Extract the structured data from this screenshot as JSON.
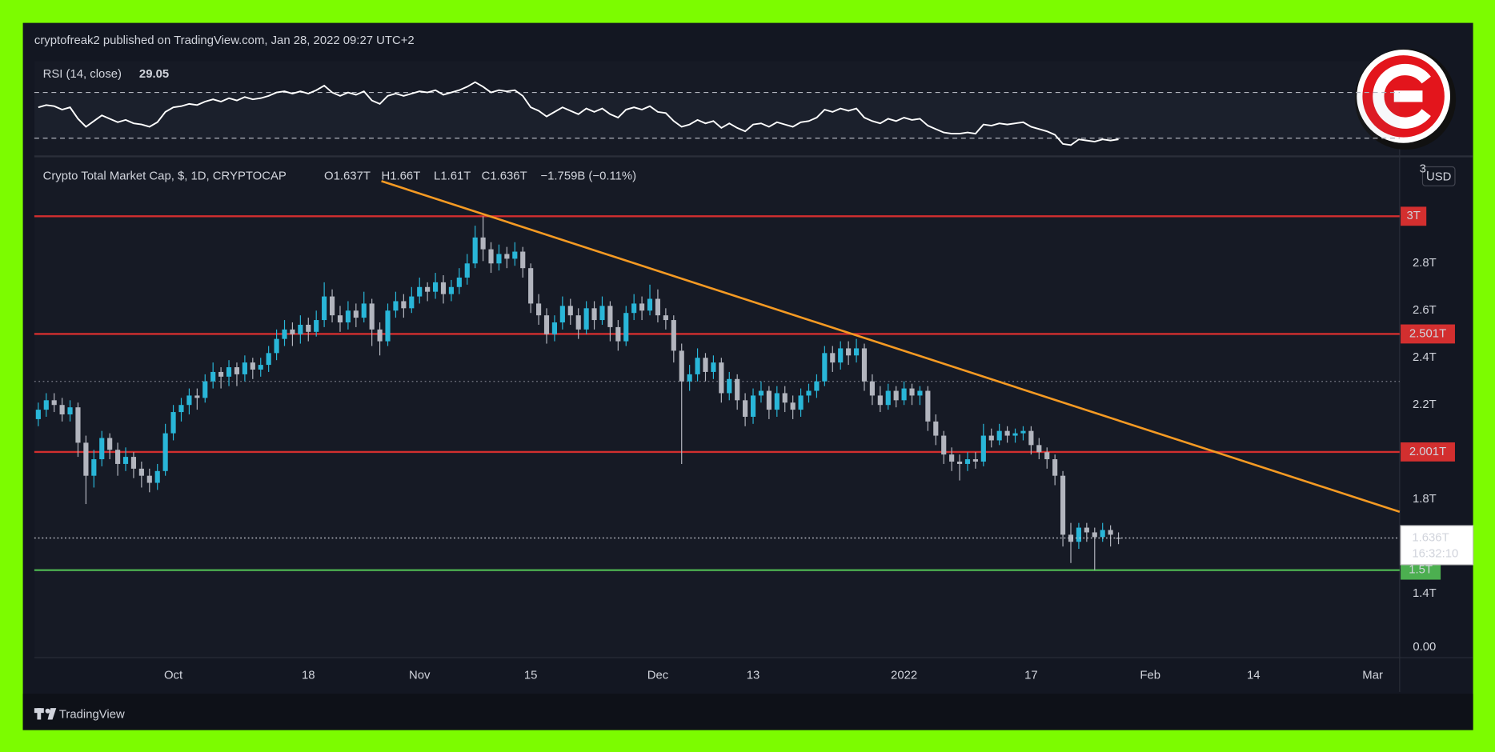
{
  "header": {
    "published": "cryptofreak2 published on TradingView.com, Jan 28, 2022 09:27 UTC+2",
    "footer": "TradingView"
  },
  "chart_data": {
    "type": "candlestick",
    "title": "Crypto Total Market Cap, $, 1D, CRYPTOCAP",
    "ohlc_labels": [
      "O1.637T",
      "H1.66T",
      "L1.61T",
      "C1.636T"
    ],
    "change": "−1.759B (−0.11%)",
    "currency": "USD",
    "up_color": "#29b6d8",
    "down_color": "#b2b5be",
    "xlim": [
      -0.5,
      171.4
    ],
    "xticks": [
      {
        "value": 17,
        "label": "Oct"
      },
      {
        "value": 34,
        "label": "18"
      },
      {
        "value": 48,
        "label": "Nov"
      },
      {
        "value": 62,
        "label": "15"
      },
      {
        "value": 78,
        "label": "Dec"
      },
      {
        "value": 90,
        "label": "13"
      },
      {
        "value": 109,
        "label": "2022"
      },
      {
        "value": 125,
        "label": "17"
      },
      {
        "value": 140,
        "label": "Feb"
      },
      {
        "value": 153,
        "label": "14"
      },
      {
        "value": 168,
        "label": "Mar"
      }
    ],
    "ylim": [
      1.129,
      3.25
    ],
    "yticks": [
      {
        "value": 3.2,
        "label": "3."
      },
      {
        "value": 2.8,
        "label": "2.8T"
      },
      {
        "value": 2.6,
        "label": "2.6T"
      },
      {
        "value": 2.4,
        "label": "2.4T"
      },
      {
        "value": 2.2,
        "label": "2.2T"
      },
      {
        "value": 1.8,
        "label": "1.8T"
      },
      {
        "value": 1.4,
        "label": "1.4T"
      }
    ],
    "bottom_axis_label": "0.00",
    "grid": false,
    "levels": [
      {
        "value": 3,
        "label": "3T",
        "color": "#d32f2f"
      },
      {
        "value": 2.501,
        "label": "2.501T",
        "color": "#d32f2f"
      },
      {
        "value": 2.001,
        "label": "2.001T",
        "color": "#d32f2f"
      },
      {
        "value": 1.5,
        "label": "1.5T",
        "color": "#4caf50"
      }
    ],
    "dotted_levels": [
      2.3
    ],
    "last_price": {
      "value": 1.636,
      "label": "1.636T",
      "countdown": "16:32:10"
    },
    "trendline": {
      "x": [
        43.2,
        171.4
      ],
      "y": [
        3.149,
        1.747
      ],
      "color": "#f59a23"
    },
    "x": [
      0,
      1,
      2,
      3,
      4,
      5,
      6,
      7,
      8,
      9,
      10,
      11,
      12,
      13,
      14,
      15,
      16,
      17,
      18,
      19,
      20,
      21,
      22,
      23,
      24,
      25,
      26,
      27,
      28,
      29,
      30,
      31,
      32,
      33,
      34,
      35,
      36,
      37,
      38,
      39,
      40,
      41,
      42,
      43,
      44,
      45,
      46,
      47,
      48,
      49,
      50,
      51,
      52,
      53,
      54,
      55,
      56,
      57,
      58,
      59,
      60,
      61,
      62,
      63,
      64,
      65,
      66,
      67,
      68,
      69,
      70,
      71,
      72,
      73,
      74,
      75,
      76,
      77,
      78,
      79,
      80,
      81,
      82,
      83,
      84,
      85,
      86,
      87,
      88,
      89,
      90,
      91,
      92,
      93,
      94,
      95,
      96,
      97,
      98,
      99,
      100,
      101,
      102,
      103,
      104,
      105,
      106,
      107,
      108,
      109,
      110,
      111,
      112,
      113,
      114,
      115,
      116,
      117,
      118,
      119,
      120,
      121,
      122,
      123,
      124,
      125,
      126,
      127,
      128,
      129,
      130,
      131,
      132,
      133,
      134,
      135,
      136
    ],
    "ohlc": [
      [
        2.14,
        2.21,
        2.11,
        2.18
      ],
      [
        2.18,
        2.25,
        2.15,
        2.22
      ],
      [
        2.22,
        2.25,
        2.17,
        2.2
      ],
      [
        2.2,
        2.23,
        2.13,
        2.16
      ],
      [
        2.16,
        2.22,
        2.13,
        2.19
      ],
      [
        2.19,
        2.21,
        1.98,
        2.04
      ],
      [
        2.04,
        2.07,
        1.78,
        1.9
      ],
      [
        1.9,
        2.01,
        1.85,
        1.97
      ],
      [
        1.97,
        2.09,
        1.94,
        2.06
      ],
      [
        2.06,
        2.08,
        1.97,
        2.01
      ],
      [
        2.01,
        2.04,
        1.9,
        1.95
      ],
      [
        1.95,
        2.02,
        1.92,
        1.98
      ],
      [
        1.98,
        2.0,
        1.89,
        1.93
      ],
      [
        1.93,
        1.96,
        1.85,
        1.9
      ],
      [
        1.9,
        1.93,
        1.83,
        1.87
      ],
      [
        1.87,
        1.95,
        1.84,
        1.92
      ],
      [
        1.92,
        2.12,
        1.9,
        2.08
      ],
      [
        2.08,
        2.2,
        2.05,
        2.17
      ],
      [
        2.17,
        2.23,
        2.13,
        2.2
      ],
      [
        2.2,
        2.27,
        2.16,
        2.24
      ],
      [
        2.24,
        2.27,
        2.18,
        2.23
      ],
      [
        2.23,
        2.33,
        2.21,
        2.3
      ],
      [
        2.3,
        2.38,
        2.27,
        2.34
      ],
      [
        2.34,
        2.36,
        2.27,
        2.32
      ],
      [
        2.32,
        2.39,
        2.28,
        2.36
      ],
      [
        2.36,
        2.38,
        2.28,
        2.33
      ],
      [
        2.33,
        2.41,
        2.3,
        2.38
      ],
      [
        2.38,
        2.4,
        2.31,
        2.35
      ],
      [
        2.35,
        2.4,
        2.32,
        2.37
      ],
      [
        2.37,
        2.45,
        2.34,
        2.42
      ],
      [
        2.42,
        2.52,
        2.39,
        2.48
      ],
      [
        2.48,
        2.56,
        2.45,
        2.52
      ],
      [
        2.52,
        2.55,
        2.45,
        2.5
      ],
      [
        2.5,
        2.58,
        2.46,
        2.54
      ],
      [
        2.54,
        2.57,
        2.47,
        2.51
      ],
      [
        2.51,
        2.6,
        2.49,
        2.56
      ],
      [
        2.56,
        2.72,
        2.53,
        2.66
      ],
      [
        2.66,
        2.69,
        2.55,
        2.58
      ],
      [
        2.58,
        2.62,
        2.51,
        2.55
      ],
      [
        2.55,
        2.64,
        2.52,
        2.6
      ],
      [
        2.6,
        2.63,
        2.53,
        2.57
      ],
      [
        2.57,
        2.68,
        2.55,
        2.63
      ],
      [
        2.63,
        2.65,
        2.45,
        2.52
      ],
      [
        2.52,
        2.55,
        2.41,
        2.47
      ],
      [
        2.47,
        2.63,
        2.45,
        2.6
      ],
      [
        2.6,
        2.68,
        2.57,
        2.64
      ],
      [
        2.64,
        2.67,
        2.57,
        2.61
      ],
      [
        2.61,
        2.7,
        2.59,
        2.66
      ],
      [
        2.66,
        2.74,
        2.63,
        2.7
      ],
      [
        2.7,
        2.72,
        2.64,
        2.68
      ],
      [
        2.68,
        2.76,
        2.65,
        2.72
      ],
      [
        2.72,
        2.75,
        2.63,
        2.67
      ],
      [
        2.67,
        2.73,
        2.64,
        2.7
      ],
      [
        2.7,
        2.78,
        2.67,
        2.74
      ],
      [
        2.74,
        2.84,
        2.71,
        2.8
      ],
      [
        2.8,
        2.96,
        2.78,
        2.91
      ],
      [
        2.91,
        3.0,
        2.81,
        2.86
      ],
      [
        2.86,
        2.89,
        2.76,
        2.8
      ],
      [
        2.8,
        2.88,
        2.77,
        2.84
      ],
      [
        2.84,
        2.87,
        2.78,
        2.82
      ],
      [
        2.82,
        2.89,
        2.79,
        2.85
      ],
      [
        2.85,
        2.87,
        2.74,
        2.78
      ],
      [
        2.78,
        2.8,
        2.59,
        2.63
      ],
      [
        2.63,
        2.67,
        2.54,
        2.58
      ],
      [
        2.58,
        2.61,
        2.46,
        2.5
      ],
      [
        2.5,
        2.58,
        2.47,
        2.55
      ],
      [
        2.55,
        2.66,
        2.52,
        2.62
      ],
      [
        2.62,
        2.65,
        2.54,
        2.58
      ],
      [
        2.58,
        2.61,
        2.48,
        2.52
      ],
      [
        2.52,
        2.64,
        2.5,
        2.61
      ],
      [
        2.61,
        2.64,
        2.52,
        2.56
      ],
      [
        2.56,
        2.66,
        2.54,
        2.62
      ],
      [
        2.62,
        2.64,
        2.47,
        2.53
      ],
      [
        2.53,
        2.56,
        2.43,
        2.47
      ],
      [
        2.47,
        2.62,
        2.45,
        2.59
      ],
      [
        2.59,
        2.67,
        2.56,
        2.63
      ],
      [
        2.63,
        2.66,
        2.56,
        2.6
      ],
      [
        2.6,
        2.71,
        2.58,
        2.65
      ],
      [
        2.65,
        2.69,
        2.55,
        2.58
      ],
      [
        2.58,
        2.61,
        2.52,
        2.56
      ],
      [
        2.56,
        2.58,
        2.38,
        2.43
      ],
      [
        2.43,
        2.46,
        1.95,
        2.3
      ],
      [
        2.3,
        2.37,
        2.26,
        2.33
      ],
      [
        2.33,
        2.44,
        2.3,
        2.4
      ],
      [
        2.4,
        2.42,
        2.3,
        2.34
      ],
      [
        2.34,
        2.41,
        2.31,
        2.38
      ],
      [
        2.38,
        2.4,
        2.21,
        2.25
      ],
      [
        2.25,
        2.34,
        2.22,
        2.31
      ],
      [
        2.31,
        2.33,
        2.18,
        2.22
      ],
      [
        2.22,
        2.25,
        2.11,
        2.15
      ],
      [
        2.15,
        2.27,
        2.12,
        2.24
      ],
      [
        2.24,
        2.3,
        2.21,
        2.26
      ],
      [
        2.26,
        2.28,
        2.14,
        2.18
      ],
      [
        2.18,
        2.28,
        2.15,
        2.25
      ],
      [
        2.25,
        2.28,
        2.17,
        2.21
      ],
      [
        2.21,
        2.24,
        2.14,
        2.18
      ],
      [
        2.18,
        2.27,
        2.15,
        2.24
      ],
      [
        2.24,
        2.29,
        2.21,
        2.26
      ],
      [
        2.26,
        2.33,
        2.23,
        2.3
      ],
      [
        2.3,
        2.45,
        2.28,
        2.42
      ],
      [
        2.42,
        2.45,
        2.34,
        2.38
      ],
      [
        2.38,
        2.47,
        2.35,
        2.44
      ],
      [
        2.44,
        2.47,
        2.37,
        2.41
      ],
      [
        2.41,
        2.48,
        2.38,
        2.44
      ],
      [
        2.44,
        2.46,
        2.26,
        2.3
      ],
      [
        2.3,
        2.33,
        2.2,
        2.24
      ],
      [
        2.24,
        2.28,
        2.17,
        2.2
      ],
      [
        2.2,
        2.29,
        2.18,
        2.26
      ],
      [
        2.26,
        2.28,
        2.19,
        2.22
      ],
      [
        2.22,
        2.3,
        2.2,
        2.27
      ],
      [
        2.27,
        2.29,
        2.2,
        2.24
      ],
      [
        2.24,
        2.28,
        2.2,
        2.26
      ],
      [
        2.26,
        2.28,
        2.09,
        2.13
      ],
      [
        2.13,
        2.16,
        2.03,
        2.07
      ],
      [
        2.07,
        2.09,
        1.95,
        1.99
      ],
      [
        1.99,
        2.02,
        1.92,
        1.96
      ],
      [
        1.96,
        1.99,
        1.88,
        1.95
      ],
      [
        1.95,
        2.0,
        1.92,
        1.97
      ],
      [
        1.97,
        2.0,
        1.93,
        1.96
      ],
      [
        1.96,
        2.12,
        1.94,
        2.07
      ],
      [
        2.07,
        2.1,
        2.02,
        2.05
      ],
      [
        2.05,
        2.12,
        2.03,
        2.09
      ],
      [
        2.09,
        2.11,
        2.04,
        2.07
      ],
      [
        2.07,
        2.1,
        2.04,
        2.08
      ],
      [
        2.08,
        2.11,
        2.05,
        2.09
      ],
      [
        2.09,
        2.11,
        1.99,
        2.03
      ],
      [
        2.03,
        2.06,
        1.97,
        2.0
      ],
      [
        2.0,
        2.02,
        1.93,
        1.97
      ],
      [
        1.97,
        1.99,
        1.86,
        1.9
      ],
      [
        1.9,
        1.92,
        1.6,
        1.65
      ],
      [
        1.65,
        1.7,
        1.53,
        1.62
      ],
      [
        1.62,
        1.7,
        1.59,
        1.68
      ],
      [
        1.68,
        1.7,
        1.62,
        1.66
      ],
      [
        1.66,
        1.68,
        1.5,
        1.64
      ],
      [
        1.64,
        1.7,
        1.62,
        1.67
      ],
      [
        1.67,
        1.69,
        1.6,
        1.65
      ],
      [
        1.637,
        1.66,
        1.61,
        1.636
      ]
    ],
    "rsi": {
      "title": "RSI (14, close)",
      "color": "#ffffff",
      "ylim": [
        15,
        97.5
      ],
      "levels": [
        70,
        30
      ],
      "values": [
        57,
        59,
        58,
        55,
        57,
        47,
        40,
        45,
        50,
        47,
        44,
        46,
        43,
        42,
        40,
        44,
        53,
        57,
        58,
        60,
        59,
        62,
        64,
        62,
        65,
        63,
        66,
        64,
        65,
        67,
        70,
        71,
        69,
        71,
        69,
        72,
        76,
        70,
        67,
        70,
        68,
        71,
        63,
        60,
        67,
        69,
        67,
        69,
        71,
        70,
        72,
        68,
        70,
        72,
        75,
        79,
        75,
        70,
        72,
        71,
        72,
        67,
        57,
        54,
        49,
        53,
        57,
        54,
        51,
        56,
        53,
        56,
        51,
        48,
        55,
        57,
        55,
        58,
        53,
        52,
        45,
        40,
        42,
        46,
        43,
        45,
        39,
        43,
        39,
        36,
        42,
        43,
        40,
        44,
        42,
        40,
        44,
        45,
        48,
        55,
        53,
        56,
        54,
        56,
        48,
        45,
        43,
        47,
        45,
        48,
        46,
        47,
        41,
        38,
        35,
        34,
        34,
        35,
        34,
        42,
        41,
        43,
        42,
        43,
        44,
        40,
        38,
        36,
        33,
        25,
        24,
        29,
        28,
        27,
        29,
        28,
        29.05
      ]
    }
  }
}
